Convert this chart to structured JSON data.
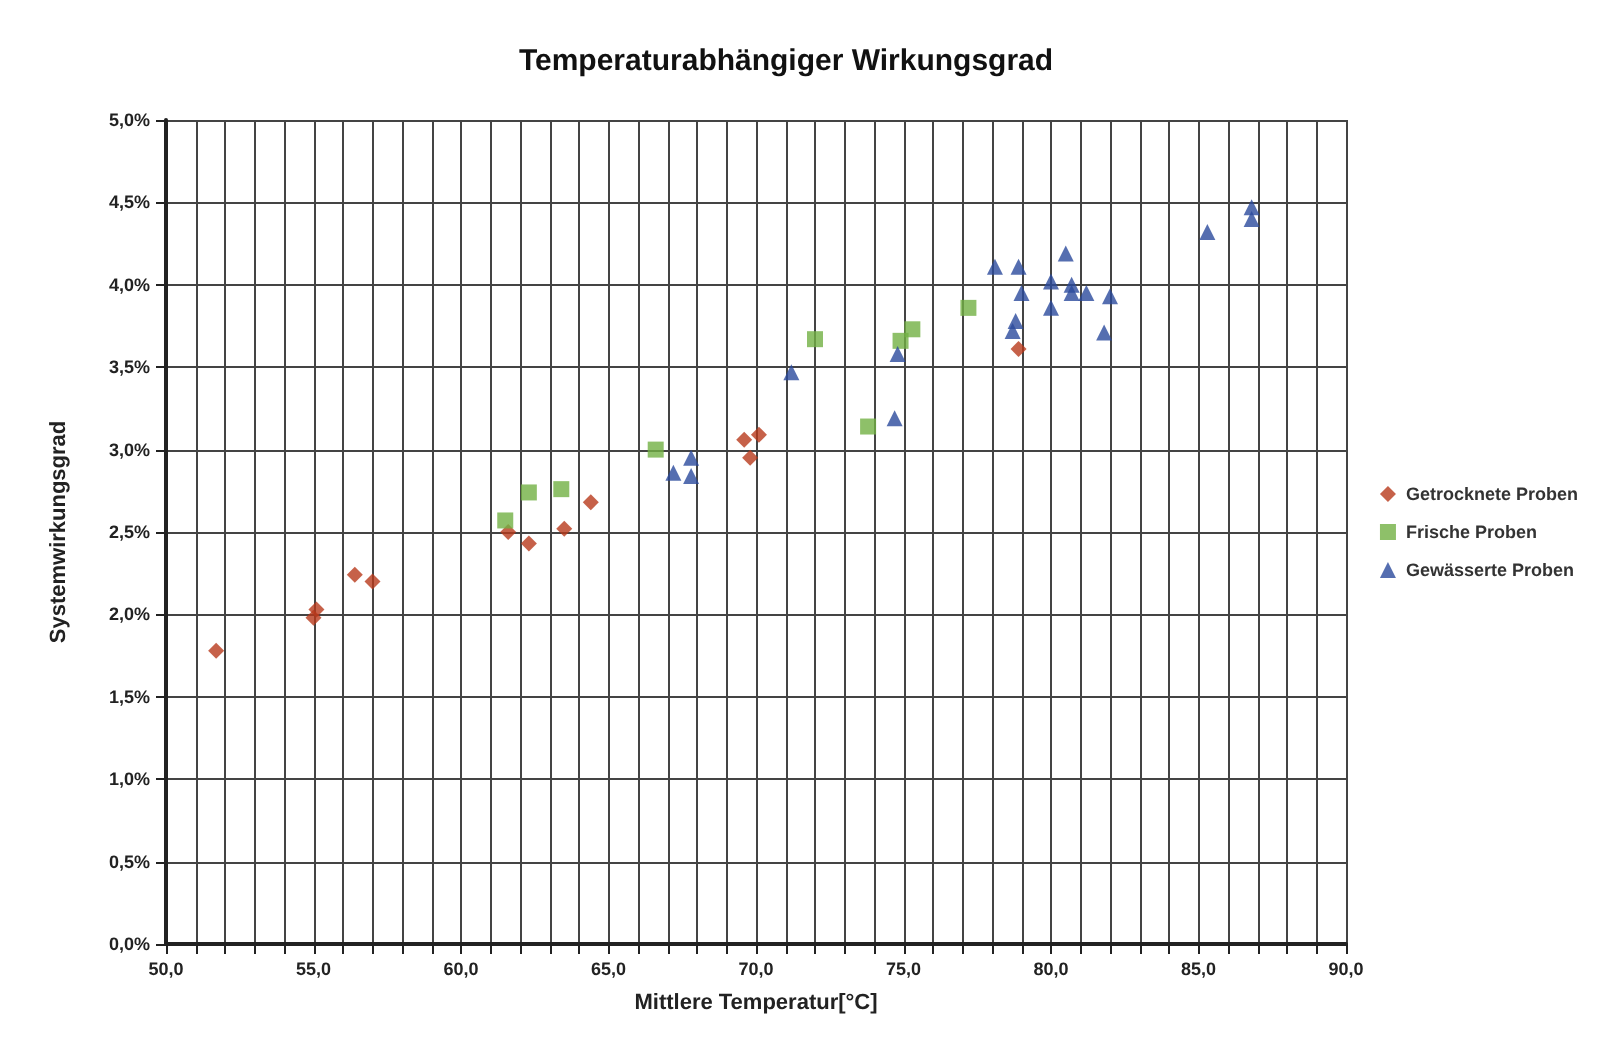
{
  "chart_data": {
    "type": "scatter",
    "title": "Temperaturabhängiger Wirkungsgrad",
    "xlabel": "Mittlere Temperatur[°C]",
    "ylabel": "Systemwirkungsgrad",
    "xlim": [
      50,
      90
    ],
    "xticks": [
      {
        "value": 50,
        "label": "50,0"
      },
      {
        "value": 51,
        "label": null
      },
      {
        "value": 52,
        "label": null
      },
      {
        "value": 53,
        "label": null
      },
      {
        "value": 54,
        "label": null
      },
      {
        "value": 55,
        "label": "55,0"
      },
      {
        "value": 56,
        "label": null
      },
      {
        "value": 57,
        "label": null
      },
      {
        "value": 58,
        "label": null
      },
      {
        "value": 59,
        "label": null
      },
      {
        "value": 60,
        "label": "60,0"
      },
      {
        "value": 61,
        "label": null
      },
      {
        "value": 62,
        "label": null
      },
      {
        "value": 63,
        "label": null
      },
      {
        "value": 64,
        "label": null
      },
      {
        "value": 65,
        "label": "65,0"
      },
      {
        "value": 66,
        "label": null
      },
      {
        "value": 67,
        "label": null
      },
      {
        "value": 68,
        "label": null
      },
      {
        "value": 69,
        "label": null
      },
      {
        "value": 70,
        "label": "70,0"
      },
      {
        "value": 71,
        "label": null
      },
      {
        "value": 72,
        "label": null
      },
      {
        "value": 73,
        "label": null
      },
      {
        "value": 74,
        "label": null
      },
      {
        "value": 75,
        "label": "75,0"
      },
      {
        "value": 76,
        "label": null
      },
      {
        "value": 77,
        "label": null
      },
      {
        "value": 78,
        "label": null
      },
      {
        "value": 79,
        "label": null
      },
      {
        "value": 80,
        "label": "80,0"
      },
      {
        "value": 81,
        "label": null
      },
      {
        "value": 82,
        "label": null
      },
      {
        "value": 83,
        "label": null
      },
      {
        "value": 84,
        "label": null
      },
      {
        "value": 85,
        "label": "85,0"
      },
      {
        "value": 86,
        "label": null
      },
      {
        "value": 87,
        "label": null
      },
      {
        "value": 88,
        "label": null
      },
      {
        "value": 89,
        "label": null
      },
      {
        "value": 90,
        "label": "90,0"
      }
    ],
    "ylim": [
      0,
      5
    ],
    "yticks": [
      {
        "value": 0,
        "label": "0,0%"
      },
      {
        "value": 0.5,
        "label": "0,5%"
      },
      {
        "value": 1,
        "label": "1,0%"
      },
      {
        "value": 1.5,
        "label": "1,5%"
      },
      {
        "value": 2,
        "label": "2,0%"
      },
      {
        "value": 2.5,
        "label": "2,5%"
      },
      {
        "value": 3,
        "label": "3,0%"
      },
      {
        "value": 3.5,
        "label": "3,5%"
      },
      {
        "value": 4,
        "label": "4,0%"
      },
      {
        "value": 4.5,
        "label": "4,5%"
      },
      {
        "value": 5,
        "label": "5,0%"
      }
    ],
    "grid": true,
    "legend": "right",
    "series": [
      {
        "name": "Getrocknete Proben",
        "color": "#b8391c",
        "marker": "diamond",
        "x": [
          51.7,
          55.0,
          55.1,
          56.4,
          57.0,
          61.6,
          62.3,
          63.5,
          64.4,
          69.6,
          70.1,
          69.8,
          78.9
        ],
        "values": [
          1.78,
          1.98,
          2.03,
          2.24,
          2.2,
          2.5,
          2.43,
          2.52,
          2.68,
          3.06,
          3.09,
          2.95,
          3.61
        ]
      },
      {
        "name": "Frische Proben",
        "color": "#72b043",
        "marker": "square",
        "x": [
          61.5,
          62.3,
          63.4,
          66.6,
          72.0,
          73.8,
          74.9,
          75.3,
          77.2
        ],
        "values": [
          2.57,
          2.74,
          2.76,
          3.0,
          3.67,
          3.14,
          3.66,
          3.73,
          3.86
        ]
      },
      {
        "name": "Gewässerte Proben",
        "color": "#2a4a9c",
        "marker": "triangle",
        "x": [
          67.2,
          67.8,
          67.8,
          71.2,
          74.7,
          74.8,
          78.1,
          78.9,
          80.5,
          80.0,
          80.7,
          80.7,
          81.2,
          82.0,
          79.0,
          80.0,
          78.8,
          78.7,
          81.8,
          85.3,
          86.8,
          86.8
        ],
        "values": [
          2.86,
          2.95,
          2.84,
          3.47,
          3.19,
          3.58,
          4.11,
          4.11,
          4.19,
          4.02,
          4.0,
          3.95,
          3.95,
          3.93,
          3.95,
          3.86,
          3.78,
          3.72,
          3.71,
          4.32,
          4.47,
          4.4
        ]
      }
    ]
  }
}
